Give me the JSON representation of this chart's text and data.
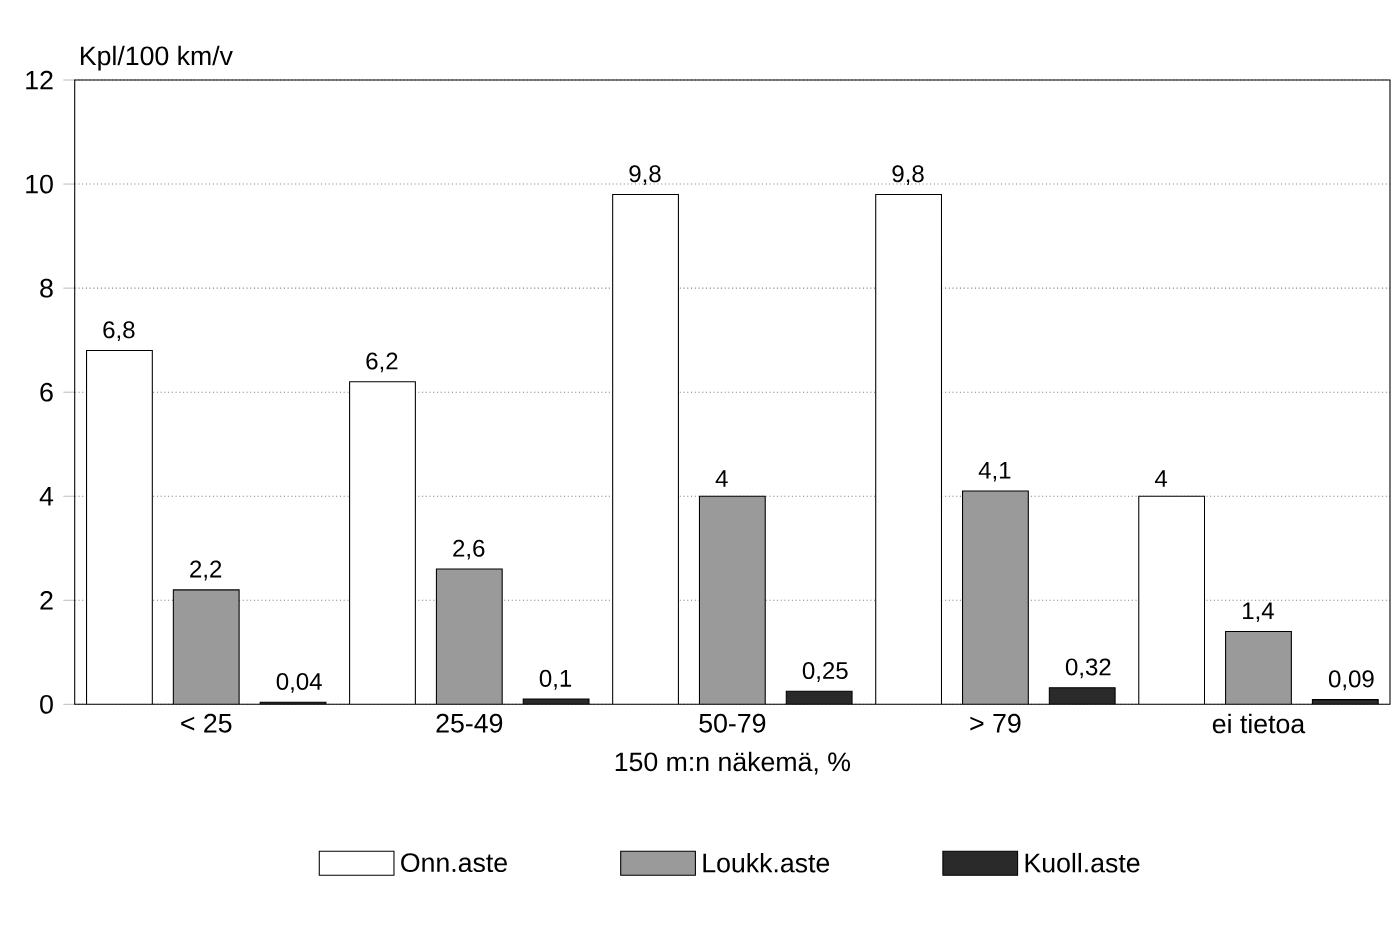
{
  "chart_data": {
    "type": "bar",
    "xlabel": "150 m:n näkemä, %",
    "ylabel": "Kpl/100 km/v",
    "categories": [
      "< 25",
      "25-49",
      "50-79",
      "> 79",
      "ei tietoa"
    ],
    "series": [
      {
        "name": "Onn.aste",
        "color": "#ffffff",
        "values": [
          6.8,
          6.2,
          9.8,
          9.8,
          4
        ],
        "value_labels": [
          "6,8",
          "6,2",
          "9,8",
          "9,8",
          "4"
        ]
      },
      {
        "name": "Loukk.aste",
        "color": "#9a9a9a",
        "values": [
          2.2,
          2.6,
          4,
          4.1,
          1.4
        ],
        "value_labels": [
          "2,2",
          "2,6",
          "4",
          "4,1",
          "1,4"
        ]
      },
      {
        "name": "Kuoll.aste",
        "color": "#2a2a2a",
        "values": [
          0.04,
          0.1,
          0.25,
          0.32,
          0.09
        ],
        "value_labels": [
          "0,04",
          "0,1",
          "0,25",
          "0,32",
          "0,09"
        ]
      }
    ],
    "ylim": [
      0,
      12
    ],
    "yticks": [
      0,
      2,
      4,
      6,
      8,
      10,
      12
    ],
    "grid": "y",
    "legend": "bottom"
  }
}
